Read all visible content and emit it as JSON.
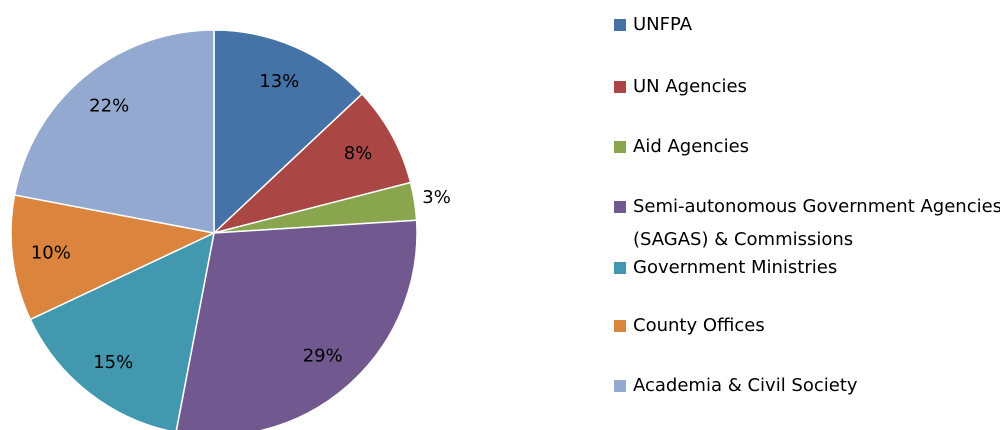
{
  "chart_data": {
    "type": "pie",
    "categories": [
      "UNFPA",
      "UN Agencies",
      "Aid Agencies",
      "Semi-autonomous Government Agencies (SAGAS) & Commissions",
      "Government Ministries",
      "County Offices",
      "Academia & Civil Society"
    ],
    "values": [
      13,
      8,
      3,
      29,
      15,
      10,
      22
    ],
    "value_labels": [
      "13%",
      "8%",
      "3%",
      "29%",
      "15%",
      "10%",
      "22%"
    ],
    "colors": [
      "#4572A7",
      "#AA4643",
      "#89A54E",
      "#71588F",
      "#4198AF",
      "#DB843D",
      "#93A9CF"
    ],
    "legend": "right"
  }
}
